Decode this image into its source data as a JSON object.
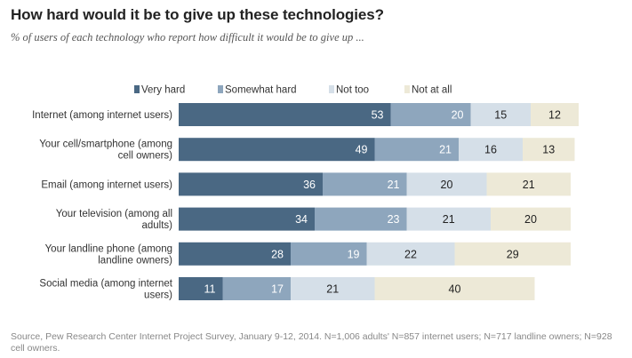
{
  "title": "How hard would it be to give up these technologies?",
  "subtitle": "% of users of each technology who report how difficult it would be to give up ...",
  "source": "Source, Pew Research Center Internet Project Survey, January 9-12, 2014. N=1,006 adults' N=857 internet users; N=717 landline owners; N=928 cell owners.",
  "colors": {
    "very_hard": "#4a6883",
    "somewhat_hard": "#8ea6bd",
    "not_too": "#d5dfe8",
    "not_at_all": "#ede9d7",
    "label_dark_bg": "#ffffff",
    "label_light_bg": "#222222"
  },
  "chart_data": {
    "type": "bar",
    "orientation": "horizontal",
    "stacked": true,
    "legend": "top",
    "grid": false,
    "categories": [
      [
        "Internet (among internet users)"
      ],
      [
        "Your cell/smartphone (among",
        "cell owners)"
      ],
      [
        "Email (among internet users)"
      ],
      [
        "Your television (among all",
        "adults)"
      ],
      [
        "Your landline phone (among",
        "landline owners)"
      ],
      [
        "Social media (among internet",
        "users)"
      ]
    ],
    "series": [
      {
        "name": "Very hard",
        "values": [
          53,
          49,
          36,
          34,
          28,
          11
        ]
      },
      {
        "name": "Somewhat hard",
        "values": [
          20,
          21,
          21,
          23,
          19,
          17
        ]
      },
      {
        "name": "Not too",
        "values": [
          15,
          16,
          20,
          21,
          22,
          21
        ]
      },
      {
        "name": "Not at all",
        "values": [
          12,
          13,
          21,
          20,
          29,
          40
        ]
      }
    ]
  }
}
